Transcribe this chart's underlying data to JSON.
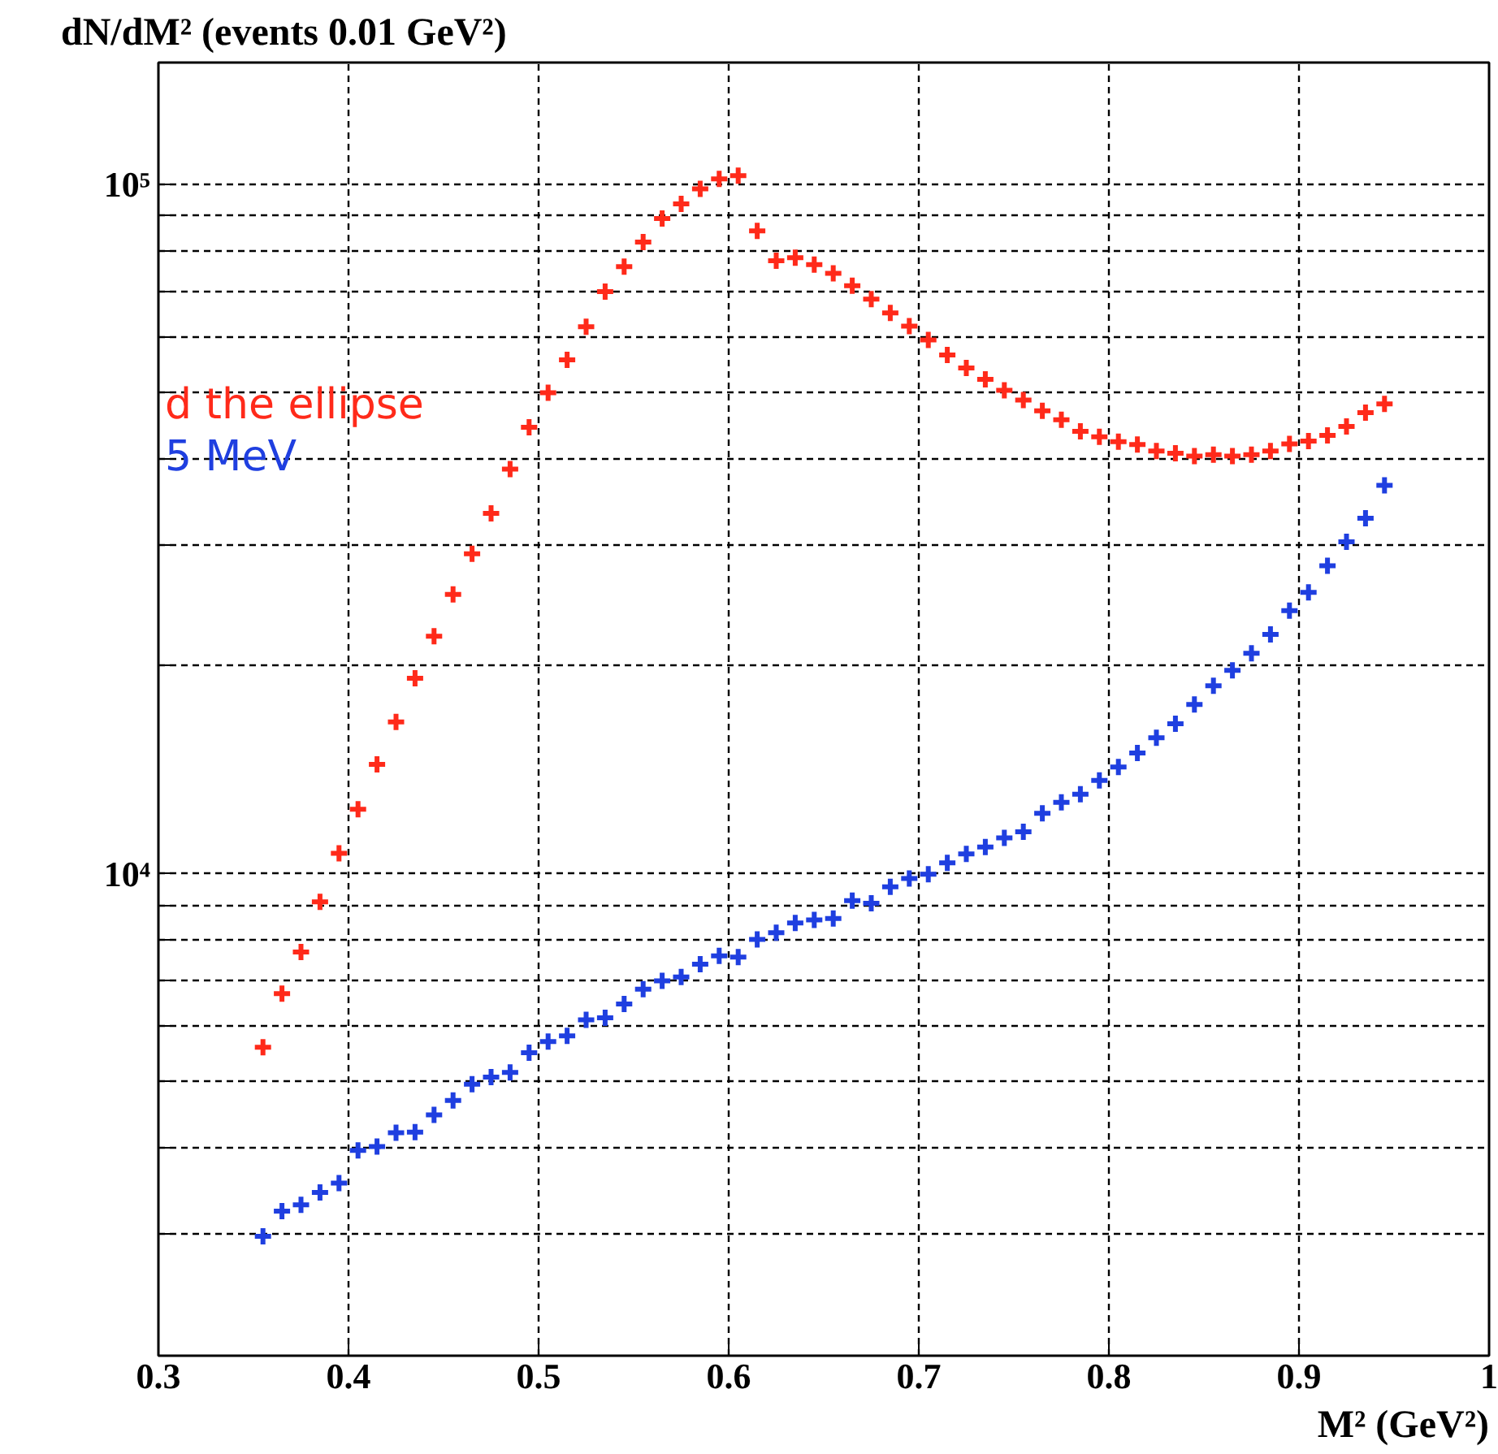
{
  "chart_data": {
    "type": "scatter",
    "ylabel": "dN/dM² (events 0.01 GeV²)",
    "xlabel": "M² (GeV²)",
    "annotations": [
      "d the ellipse",
      "5 MeV"
    ],
    "x": [
      0.355,
      0.365,
      0.375,
      0.385,
      0.395,
      0.405,
      0.415,
      0.425,
      0.435,
      0.445,
      0.455,
      0.465,
      0.475,
      0.485,
      0.495,
      0.505,
      0.515,
      0.525,
      0.535,
      0.545,
      0.555,
      0.565,
      0.575,
      0.585,
      0.595,
      0.605,
      0.615,
      0.625,
      0.635,
      0.645,
      0.655,
      0.665,
      0.675,
      0.685,
      0.695,
      0.705,
      0.715,
      0.725,
      0.735,
      0.745,
      0.755,
      0.765,
      0.775,
      0.785,
      0.795,
      0.805,
      0.815,
      0.825,
      0.835,
      0.845,
      0.855,
      0.865,
      0.875,
      0.885,
      0.895,
      0.905,
      0.915,
      0.925,
      0.935,
      0.945
    ],
    "series": [
      {
        "color": "#ff2a1a",
        "values": [
          5600,
          6700,
          7700,
          9100,
          10700,
          12400,
          14400,
          16600,
          19200,
          22100,
          25400,
          29100,
          33300,
          38600,
          44400,
          49800,
          55600,
          62100,
          69800,
          75900,
          82400,
          89100,
          93600,
          98400,
          101700,
          102800,
          85500,
          77400,
          78200,
          76400,
          74200,
          71200,
          68100,
          65000,
          62200,
          59400,
          56500,
          54100,
          52100,
          50200,
          48600,
          46900,
          45500,
          43800,
          43000,
          42300,
          41900,
          41000,
          40700,
          40300,
          40500,
          40300,
          40500,
          41000,
          42000,
          42400,
          43200,
          44500,
          46600,
          48000
        ]
      },
      {
        "color": "#1f3fe0",
        "values": [
          2980,
          3240,
          3310,
          3450,
          3560,
          3970,
          4020,
          4210,
          4220,
          4470,
          4690,
          4950,
          5070,
          5150,
          5500,
          5710,
          5820,
          6140,
          6180,
          6470,
          6800,
          6990,
          7080,
          7390,
          7600,
          7570,
          8030,
          8210,
          8480,
          8570,
          8610,
          9140,
          9060,
          9570,
          9840,
          9980,
          10370,
          10680,
          10930,
          11270,
          11500,
          12230,
          12690,
          13040,
          13650,
          14280,
          14960,
          15740,
          16490,
          17590,
          18720,
          19710,
          20870,
          22230,
          24060,
          25570,
          27950,
          30280,
          32750,
          36560
        ]
      }
    ],
    "marker": "cross",
    "log": "y",
    "xlim": [
      0.3,
      1.0
    ],
    "xticks": [
      0.3,
      0.4,
      0.5,
      0.6,
      0.7,
      0.8,
      0.9,
      1
    ],
    "ylim": [
      2000,
      150000
    ],
    "yticks": [
      {
        "value": 2000,
        "label": null
      },
      {
        "value": 3000,
        "label": null
      },
      {
        "value": 4000,
        "label": null
      },
      {
        "value": 5000,
        "label": null
      },
      {
        "value": 6000,
        "label": null
      },
      {
        "value": 7000,
        "label": null
      },
      {
        "value": 8000,
        "label": null
      },
      {
        "value": 9000,
        "label": null
      },
      {
        "value": 10000,
        "label": "10⁴"
      },
      {
        "value": 20000,
        "label": null
      },
      {
        "value": 30000,
        "label": null
      },
      {
        "value": 40000,
        "label": null
      },
      {
        "value": 50000,
        "label": null
      },
      {
        "value": 60000,
        "label": null
      },
      {
        "value": 70000,
        "label": null
      },
      {
        "value": 80000,
        "label": null
      },
      {
        "value": 90000,
        "label": null
      },
      {
        "value": 100000,
        "label": "10⁵"
      }
    ],
    "grid": true
  }
}
